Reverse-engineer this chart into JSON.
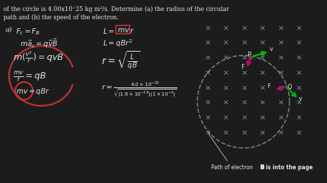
{
  "background_color": "#1a1a1a",
  "text_color": "#f0f0f0",
  "title_text": "of the circle is 4.00x10^-25 kg m^2/s. Determine (a) the radius of the circular\npath and (b) the speed of the electron.",
  "x_marks_color": "#6bb5d6",
  "circle_color": "#555555",
  "arrow_green_color": "#00cc00",
  "arrow_pink_color": "#cc0066",
  "arrow_olive_color": "#888800",
  "label_P": "P",
  "label_Q": "Q",
  "annotation_path": "Path of electron",
  "annotation_B": "B is into the page",
  "main_text_color": "#e8e8e8",
  "formula_box_color": "#cc3333",
  "box_outline_color": "#cc3333"
}
